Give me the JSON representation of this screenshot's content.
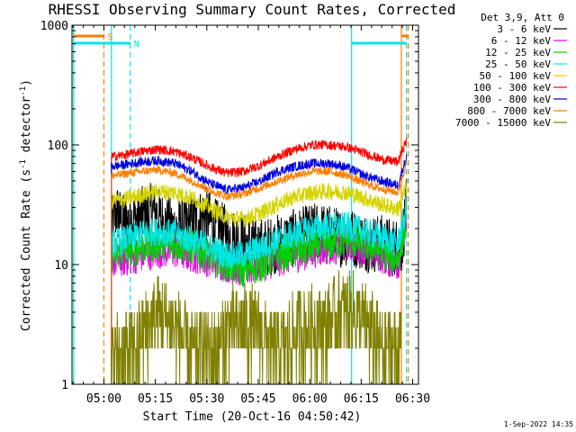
{
  "chart_data": {
    "type": "line",
    "title": "RHESSI Observing Summary Count Rates, Corrected",
    "xlabel": "Start Time (20-Oct-16 04:50:42)",
    "ylabel_main": "Corrected Count Rate (s",
    "ylabel_sup1": "-1",
    "ylabel_mid": " detector",
    "ylabel_sup2": "-1",
    "ylabel_end": ")",
    "yscale": "log",
    "ylim": [
      1,
      1000
    ],
    "xlim_minutes": [
      0,
      101
    ],
    "x_ticks": [
      "05:00",
      "05:15",
      "05:30",
      "05:45",
      "06:00",
      "06:15",
      "06:30"
    ],
    "y_ticks": [
      "1",
      "10",
      "100",
      "1000"
    ],
    "legend_title": "Det 3,9, Att 0",
    "legend_placement": "top-right",
    "timestamp": "1-Sep-2022 14:35",
    "flags": [
      {
        "label": "S",
        "color": "#ff7f00",
        "t0": 0.5,
        "t1": 9.3,
        "t2": 96.0,
        "t3": 98.0
      },
      {
        "label": "N",
        "color": "#00e5e5",
        "t0": 0.5,
        "t1": 17.0,
        "t2": 81.5,
        "t3": 97.5
      }
    ],
    "markers": [
      {
        "time": 0.5,
        "color": "#00e5e5",
        "style": "solid"
      },
      {
        "time": 9.3,
        "color": "#ff7f00",
        "style": "dashed"
      },
      {
        "time": 11.5,
        "color": "#00e5e5",
        "style": "solid"
      },
      {
        "time": 17.0,
        "color": "#00e5e5",
        "style": "dashed"
      },
      {
        "time": 81.5,
        "color": "#00e5e5",
        "style": "solid"
      },
      {
        "time": 96.0,
        "color": "#ff7f00",
        "style": "solid"
      },
      {
        "time": 98.0,
        "color": "#ff7f00",
        "style": "dashed"
      },
      {
        "time": 97.5,
        "color": "#00e5e5",
        "style": "dashed"
      }
    ],
    "series": [
      {
        "name": "3 - 6 keV",
        "color": "#000000",
        "x": [
          11.5,
          13,
          15,
          18,
          21,
          24,
          27,
          30,
          33,
          36,
          39,
          42,
          45,
          48,
          51,
          54,
          57,
          60,
          63,
          66,
          69,
          72,
          75,
          78,
          81,
          84,
          87,
          90,
          93,
          96,
          97.5
        ],
        "y": [
          20,
          28,
          22,
          24,
          26,
          28,
          22,
          20,
          21,
          23,
          26,
          20,
          18,
          16,
          15,
          14,
          14,
          15,
          16,
          17,
          18,
          19,
          18,
          17,
          17,
          16,
          15,
          15,
          14,
          14,
          30
        ],
        "noise": 0.25
      },
      {
        "name": "6 - 12 keV",
        "color": "#e800e8",
        "x": [
          11.5,
          15,
          20,
          25,
          30,
          35,
          40,
          45,
          50,
          55,
          60,
          65,
          70,
          75,
          80,
          85,
          90,
          95,
          97.5
        ],
        "y": [
          11,
          11,
          12,
          13,
          13,
          12,
          11,
          10,
          9,
          10,
          11,
          12,
          13,
          14,
          15,
          14,
          12,
          10,
          22
        ],
        "noise": 0.15
      },
      {
        "name": "12 - 25 keV",
        "color": "#00d000",
        "x": [
          11.5,
          15,
          20,
          25,
          30,
          35,
          40,
          45,
          50,
          55,
          60,
          65,
          70,
          75,
          80,
          85,
          90,
          95,
          97.5
        ],
        "y": [
          12,
          13,
          14,
          15,
          15,
          14,
          12,
          10,
          9,
          10,
          12,
          13,
          14,
          15,
          16,
          15,
          13,
          11,
          24
        ],
        "noise": 0.15
      },
      {
        "name": "25 - 50 keV",
        "color": "#00e5e5",
        "x": [
          11.5,
          15,
          20,
          25,
          30,
          35,
          40,
          45,
          50,
          55,
          60,
          65,
          70,
          75,
          80,
          85,
          90,
          95,
          97.5
        ],
        "y": [
          15,
          16,
          18,
          19,
          18,
          16,
          14,
          12,
          12,
          14,
          16,
          18,
          20,
          21,
          21,
          19,
          17,
          15,
          30
        ],
        "noise": 0.12
      },
      {
        "name": "50 - 100 keV",
        "color": "#d4d400",
        "x": [
          11.5,
          15,
          20,
          25,
          30,
          35,
          40,
          45,
          50,
          55,
          60,
          65,
          70,
          75,
          80,
          85,
          90,
          95,
          97.5
        ],
        "y": [
          34,
          35,
          38,
          41,
          40,
          36,
          30,
          25,
          24,
          27,
          32,
          37,
          40,
          41,
          40,
          36,
          32,
          29,
          45
        ],
        "noise": 0.07
      },
      {
        "name": "100 - 300 keV",
        "color": "#ff0000",
        "x": [
          11.5,
          15,
          20,
          25,
          30,
          35,
          40,
          45,
          50,
          55,
          60,
          65,
          70,
          75,
          80,
          85,
          90,
          95,
          97.5
        ],
        "y": [
          80,
          82,
          88,
          92,
          88,
          78,
          66,
          58,
          60,
          68,
          80,
          92,
          100,
          100,
          96,
          86,
          76,
          72,
          110
        ],
        "noise": 0.04
      },
      {
        "name": "300 - 800 keV",
        "color": "#0000e0",
        "x": [
          11.5,
          15,
          20,
          25,
          30,
          35,
          40,
          45,
          50,
          55,
          60,
          65,
          70,
          75,
          80,
          85,
          90,
          95,
          97.5
        ],
        "y": [
          66,
          68,
          72,
          74,
          70,
          60,
          48,
          42,
          44,
          50,
          60,
          66,
          70,
          70,
          65,
          56,
          50,
          46,
          80
        ],
        "noise": 0.04
      },
      {
        "name": "800 - 7000 keV",
        "color": "#ff7f00",
        "x": [
          11.5,
          15,
          20,
          25,
          30,
          35,
          40,
          45,
          50,
          55,
          60,
          65,
          70,
          75,
          80,
          85,
          90,
          95,
          97.5
        ],
        "y": [
          55,
          57,
          60,
          62,
          58,
          50,
          42,
          37,
          39,
          44,
          50,
          56,
          60,
          60,
          56,
          48,
          43,
          40,
          70
        ],
        "noise": 0.035
      },
      {
        "name": "7000 - 15000 keV",
        "color": "#808000",
        "x": [
          11.5,
          14,
          18,
          22,
          26,
          30,
          34,
          38,
          42,
          46,
          50,
          54,
          58,
          62,
          66,
          70,
          74,
          78,
          82,
          86,
          90,
          94,
          96
        ],
        "y": [
          1.5,
          2,
          2,
          3,
          4,
          3,
          2,
          2,
          2,
          3,
          3,
          3,
          2,
          2,
          3,
          3,
          3,
          4,
          4,
          3,
          2,
          2,
          2
        ],
        "noise": 0.35
      }
    ]
  }
}
